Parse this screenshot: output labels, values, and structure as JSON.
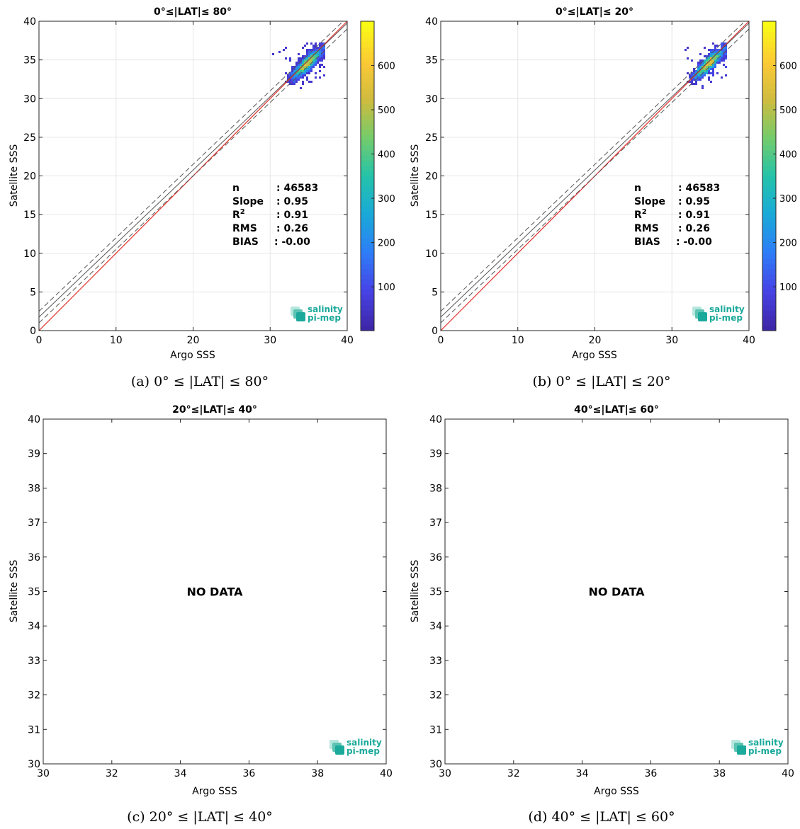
{
  "colormap": [
    "#3e26a8",
    "#4743e6",
    "#2d7ef8",
    "#1aa9d8",
    "#24c3aa",
    "#73cc6b",
    "#cfbc3f",
    "#fcc935",
    "#f9fb15"
  ],
  "colors": {
    "identity": "#e0302b",
    "fit_line": "#555555",
    "axis": "#262626",
    "grid": "#e6e6e6",
    "logo": "#1aa99a"
  },
  "logo": {
    "line1": "salinity",
    "line2": "pi-mep"
  },
  "chart_data": [
    {
      "type": "heatmap",
      "title": "0°≤|LAT|≤ 80°",
      "caption": "(a) 0° ≤ |LAT| ≤ 80°",
      "xlabel": "Argo SSS",
      "ylabel": "Satellite SSS",
      "xlim": [
        0,
        40
      ],
      "ylim": [
        0,
        40
      ],
      "xticks": [
        "0",
        "10",
        "20",
        "30",
        "40"
      ],
      "yticks": [
        "0",
        "5",
        "10",
        "15",
        "20",
        "25",
        "30",
        "35",
        "40"
      ],
      "grid": true,
      "colorbar": {
        "ticks": [
          "100",
          "200",
          "300",
          "400",
          "500",
          "600"
        ],
        "range": [
          1,
          700
        ]
      },
      "stats": [
        {
          "label": "n",
          "value": ": 46583"
        },
        {
          "label": "Slope",
          "value": ": 0.95"
        },
        {
          "label": "R",
          "sup": "2",
          "value": ": 0.91"
        },
        {
          "label": "RMS",
          "value": ": 0.26"
        },
        {
          "label": "BIAS",
          "value": ": -0.00"
        }
      ],
      "density_cloud": {
        "x_range": [
          29.5,
          37
        ],
        "y_range": [
          29,
          37
        ],
        "center": [
          35,
          35
        ],
        "peak": 700
      },
      "identity_line": [
        [
          0,
          0
        ],
        [
          40,
          40
        ]
      ],
      "fit_line": {
        "slope": 0.95,
        "intercept": 1.75
      },
      "confidence_offsets": [
        -0.75,
        0.75
      ]
    },
    {
      "type": "heatmap",
      "title": "0°≤|LAT|≤ 20°",
      "caption": "(b) 0° ≤ |LAT| ≤ 20°",
      "xlabel": "Argo SSS",
      "ylabel": "Satellite SSS",
      "xlim": [
        0,
        40
      ],
      "ylim": [
        0,
        40
      ],
      "xticks": [
        "0",
        "10",
        "20",
        "30",
        "40"
      ],
      "yticks": [
        "0",
        "5",
        "10",
        "15",
        "20",
        "25",
        "30",
        "35",
        "40"
      ],
      "grid": true,
      "colorbar": {
        "ticks": [
          "100",
          "200",
          "300",
          "400",
          "500",
          "600"
        ],
        "range": [
          1,
          700
        ]
      },
      "stats": [
        {
          "label": "n",
          "value": ": 46583"
        },
        {
          "label": "Slope",
          "value": ": 0.95"
        },
        {
          "label": "R",
          "sup": "2",
          "value": ": 0.91"
        },
        {
          "label": "RMS",
          "value": ": 0.26"
        },
        {
          "label": "BIAS",
          "value": ": -0.00"
        }
      ],
      "density_cloud": {
        "x_range": [
          29.5,
          37
        ],
        "y_range": [
          29,
          37
        ],
        "center": [
          35,
          35
        ],
        "peak": 700
      },
      "identity_line": [
        [
          0,
          0
        ],
        [
          40,
          40
        ]
      ],
      "fit_line": {
        "slope": 0.95,
        "intercept": 1.75
      },
      "confidence_offsets": [
        -0.75,
        0.75
      ]
    },
    {
      "type": "heatmap",
      "title": "20°≤|LAT|≤ 40°",
      "caption": "(c) 20° ≤ |LAT| ≤ 40°",
      "xlabel": "Argo SSS",
      "ylabel": "Satellite SSS",
      "xlim": [
        30,
        40
      ],
      "ylim": [
        30,
        40
      ],
      "xticks": [
        "30",
        "32",
        "34",
        "36",
        "38",
        "40"
      ],
      "yticks": [
        "30",
        "31",
        "32",
        "33",
        "34",
        "35",
        "36",
        "37",
        "38",
        "39",
        "40"
      ],
      "grid": false,
      "annotation": "NO DATA"
    },
    {
      "type": "heatmap",
      "title": "40°≤|LAT|≤ 60°",
      "caption": "(d) 40° ≤ |LAT| ≤ 60°",
      "xlabel": "Argo SSS",
      "ylabel": "Satellite SSS",
      "xlim": [
        30,
        40
      ],
      "ylim": [
        30,
        40
      ],
      "xticks": [
        "30",
        "32",
        "34",
        "36",
        "38",
        "40"
      ],
      "yticks": [
        "30",
        "31",
        "32",
        "33",
        "34",
        "35",
        "36",
        "37",
        "38",
        "39",
        "40"
      ],
      "grid": false,
      "annotation": "NO DATA"
    }
  ]
}
